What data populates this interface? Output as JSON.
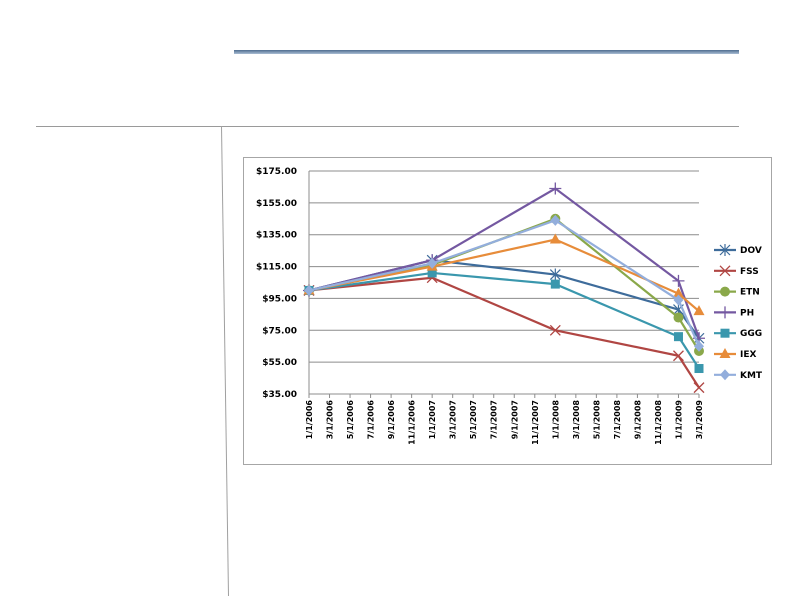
{
  "chart_data": {
    "type": "line",
    "title": "",
    "xlabel": "",
    "ylabel": "",
    "ylim": [
      35,
      175
    ],
    "y_ticks": [
      "$175.00",
      "$155.00",
      "$135.00",
      "$115.00",
      "$95.00",
      "$75.00",
      "$55.00",
      "$35.00"
    ],
    "y_tick_values": [
      175,
      155,
      135,
      115,
      95,
      75,
      55,
      35
    ],
    "x_ticks": [
      "1/1/2006",
      "3/1/2006",
      "5/1/2006",
      "7/1/2006",
      "9/1/2006",
      "11/1/2006",
      "1/1/2007",
      "3/1/2007",
      "5/1/2007",
      "7/1/2007",
      "9/1/2007",
      "11/1/2007",
      "1/1/2008",
      "3/1/2008",
      "5/1/2008",
      "7/1/2008",
      "9/1/2008",
      "11/1/2008",
      "1/1/2009",
      "3/1/2009"
    ],
    "x": [
      "1/1/2006",
      "1/1/2007",
      "1/1/2008",
      "1/1/2009",
      "3/1/2009"
    ],
    "grid": true,
    "legend_position": "right",
    "series": [
      {
        "name": "DOV",
        "color": "#3e6c9b",
        "marker": "asterisk",
        "values": [
          100,
          119,
          110,
          88,
          70
        ]
      },
      {
        "name": "FSS",
        "color": "#b04643",
        "marker": "x",
        "values": [
          100,
          108,
          75,
          59,
          39
        ]
      },
      {
        "name": "ETN",
        "color": "#8aa84a",
        "marker": "circle",
        "values": [
          100,
          116,
          145,
          83,
          62
        ]
      },
      {
        "name": "PH",
        "color": "#7458a1",
        "marker": "plus",
        "values": [
          100,
          119,
          164,
          106,
          70
        ]
      },
      {
        "name": "GGG",
        "color": "#3a97ad",
        "marker": "square",
        "values": [
          100,
          111,
          104,
          71,
          51
        ]
      },
      {
        "name": "IEX",
        "color": "#e78c3a",
        "marker": "triangle",
        "values": [
          100,
          115,
          132,
          98,
          87
        ]
      },
      {
        "name": "KMT",
        "color": "#93aedc",
        "marker": "diamond",
        "values": [
          100,
          117,
          144,
          94,
          65
        ]
      }
    ]
  }
}
